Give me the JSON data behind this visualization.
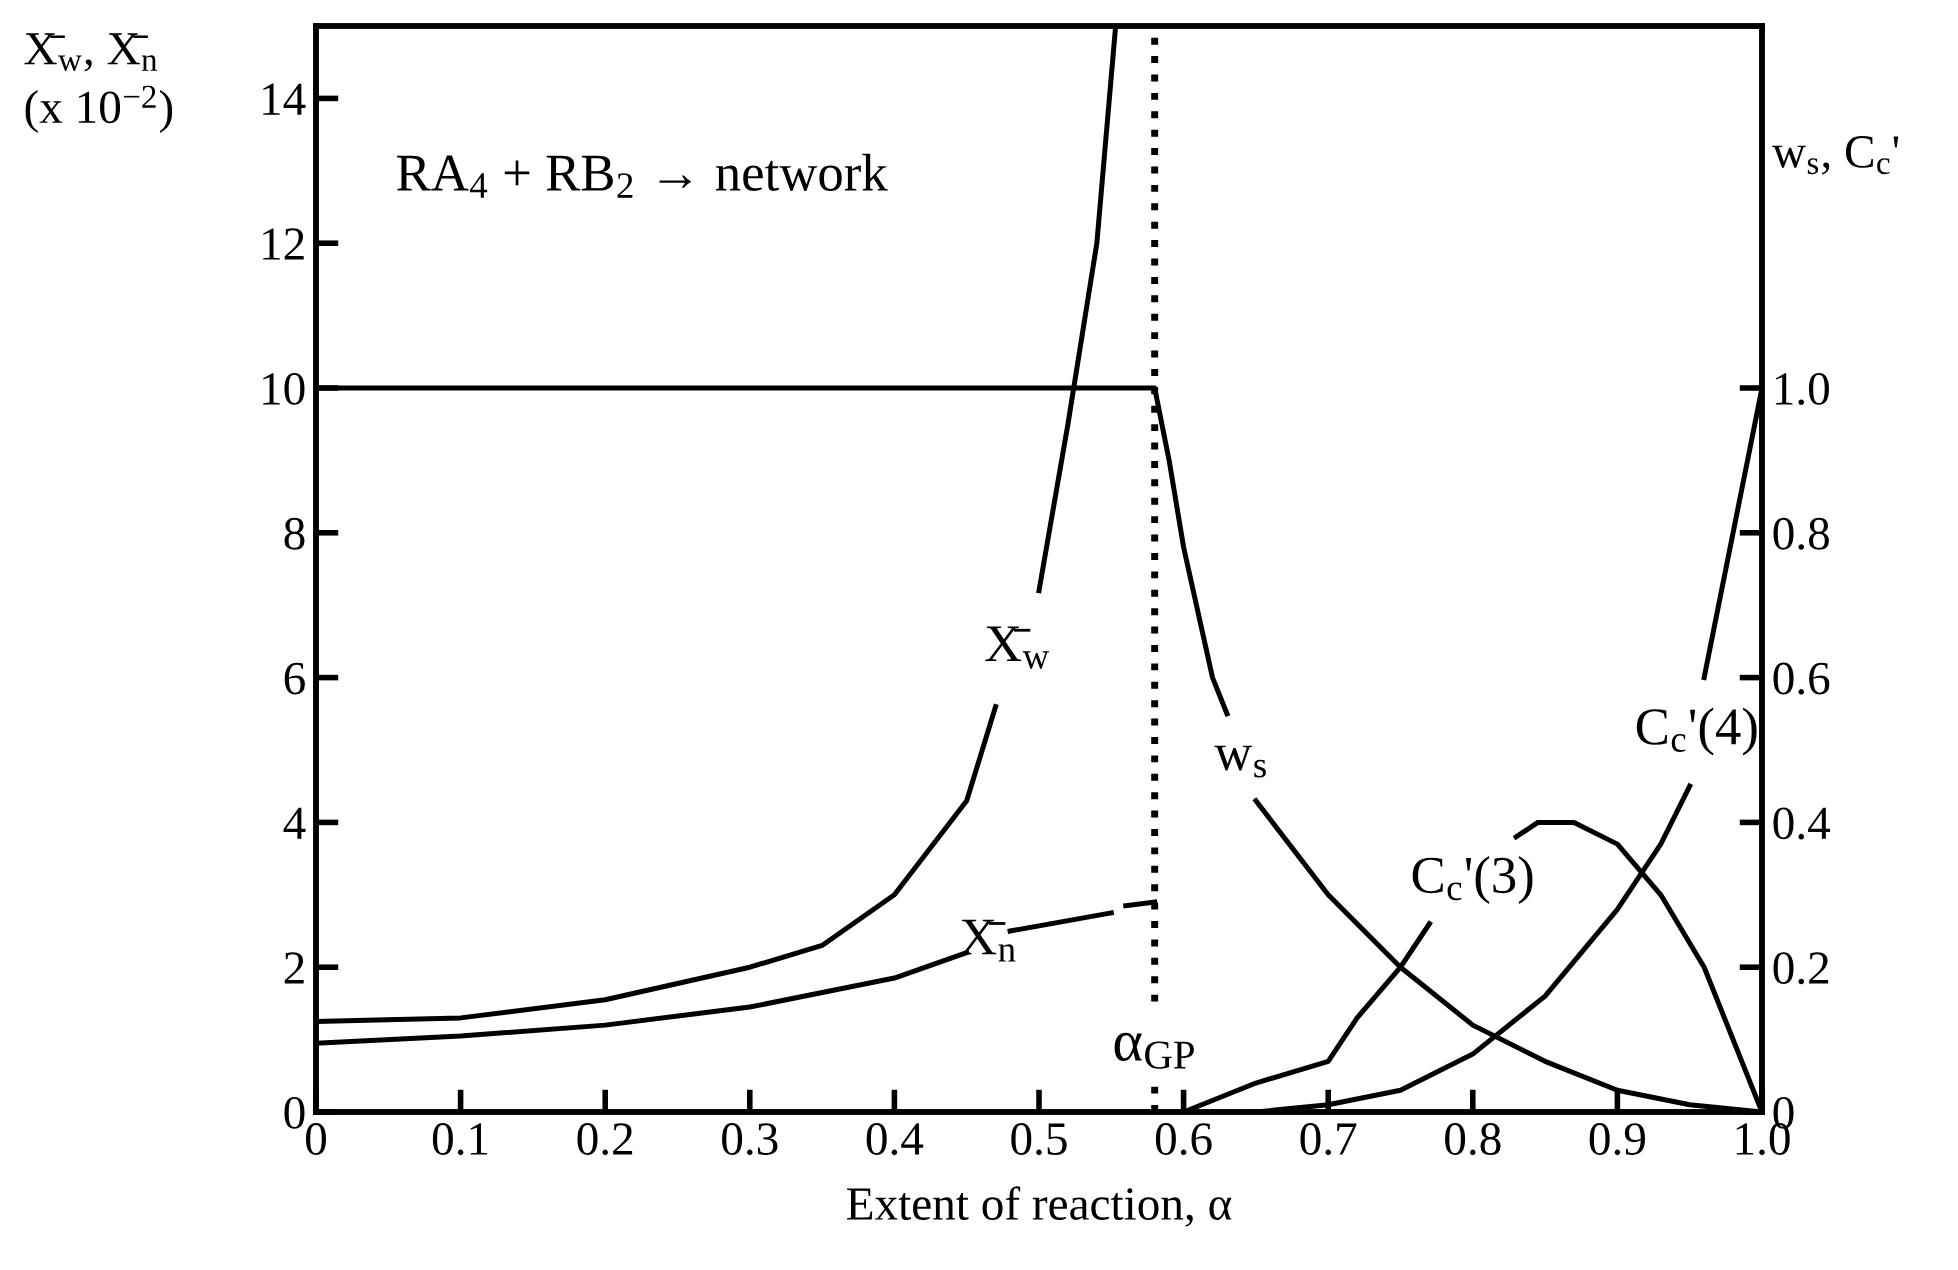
{
  "chart_data": {
    "type": "line",
    "xlabel": "Extent of reaction, α",
    "ylabel": "X̄$_{w}$, X̄$_{n}$\n(x 10$^{−2}$)",
    "y2label": "w$_{s}$, C$_{c}$'",
    "xlim": [
      0,
      1.0
    ],
    "xticks": [
      0,
      0.1,
      0.2,
      0.3,
      0.4,
      0.5,
      0.6,
      0.7,
      0.8,
      0.9,
      {
        "value": 1.0,
        "label": "1.0"
      }
    ],
    "ylim": [
      0,
      15
    ],
    "yticks": [
      0,
      2,
      4,
      6,
      8,
      10,
      12,
      14
    ],
    "y2lim": [
      0,
      1.5
    ],
    "y2ticks": [
      0,
      0.2,
      0.4,
      0.6,
      0.8,
      {
        "value": 1.0,
        "label": "1.0"
      }
    ],
    "grid": false,
    "legend": false,
    "marker": "none",
    "line_style": "solid",
    "series": [
      {
        "name": "X̄$_{w}$",
        "color": "#000000",
        "x": [
          0,
          0.1,
          0.2,
          0.3,
          0.35,
          0.4,
          0.45,
          0.47,
          0.48,
          0.5,
          0.52,
          0.54,
          0.553
        ],
        "values": [
          1.25,
          1.3,
          1.55,
          2.0,
          2.3,
          3.0,
          4.3,
          5.6,
          null,
          7.2,
          9.5,
          12,
          15
        ]
      },
      {
        "name": "X̄$_{n}$",
        "color": "#000000",
        "x": [
          0,
          0.1,
          0.2,
          0.3,
          0.4,
          0.45,
          0.46,
          0.48,
          0.55,
          0.555,
          0.56,
          0.58
        ],
        "values": [
          0.95,
          1.05,
          1.2,
          1.45,
          1.85,
          2.2,
          null,
          2.5,
          2.75,
          null,
          2.85,
          2.9
        ]
      },
      {
        "name": "w$_{s}$",
        "color": "#000000",
        "axis": "y2",
        "x": [
          0,
          0.58,
          0.59,
          0.6,
          0.62,
          0.63,
          0.64,
          0.65,
          0.7,
          0.75,
          0.8,
          0.85,
          0.9,
          0.95,
          1.0
        ],
        "values": [
          1.0,
          1.0,
          0.9,
          0.78,
          0.6,
          0.55,
          null,
          0.43,
          0.3,
          0.2,
          0.12,
          0.07,
          0.03,
          0.01,
          0
        ]
      },
      {
        "name": "C$_{c}$'(3)",
        "color": "#000000",
        "axis": "y2",
        "x": [
          0.6,
          0.65,
          0.7,
          0.72,
          0.75,
          0.77,
          0.8,
          0.83,
          0.845,
          0.87,
          0.9,
          0.93,
          0.96,
          1.0
        ],
        "values": [
          0,
          0.04,
          0.07,
          0.13,
          0.2,
          0.26,
          null,
          0.38,
          0.4,
          0.4,
          0.37,
          0.3,
          0.2,
          0
        ]
      },
      {
        "name": "C$_{c}$'(4)",
        "color": "#000000",
        "axis": "y2",
        "x": [
          0.65,
          0.7,
          0.75,
          0.8,
          0.85,
          0.9,
          0.93,
          0.95,
          0.955,
          0.96,
          0.98,
          0.995,
          1.0
        ],
        "values": [
          0,
          0.01,
          0.03,
          0.08,
          0.16,
          0.28,
          0.37,
          0.45,
          null,
          0.6,
          0.8,
          0.95,
          1.0
        ]
      }
    ],
    "ref_lines": [
      {
        "axis": "x",
        "value": 0.58,
        "label": "α$_{GP}$",
        "color": "#000000",
        "line_style": "dotted"
      }
    ],
    "annotations": [
      "RA$_{4}$ + RB$_{2}$ → network"
    ]
  }
}
